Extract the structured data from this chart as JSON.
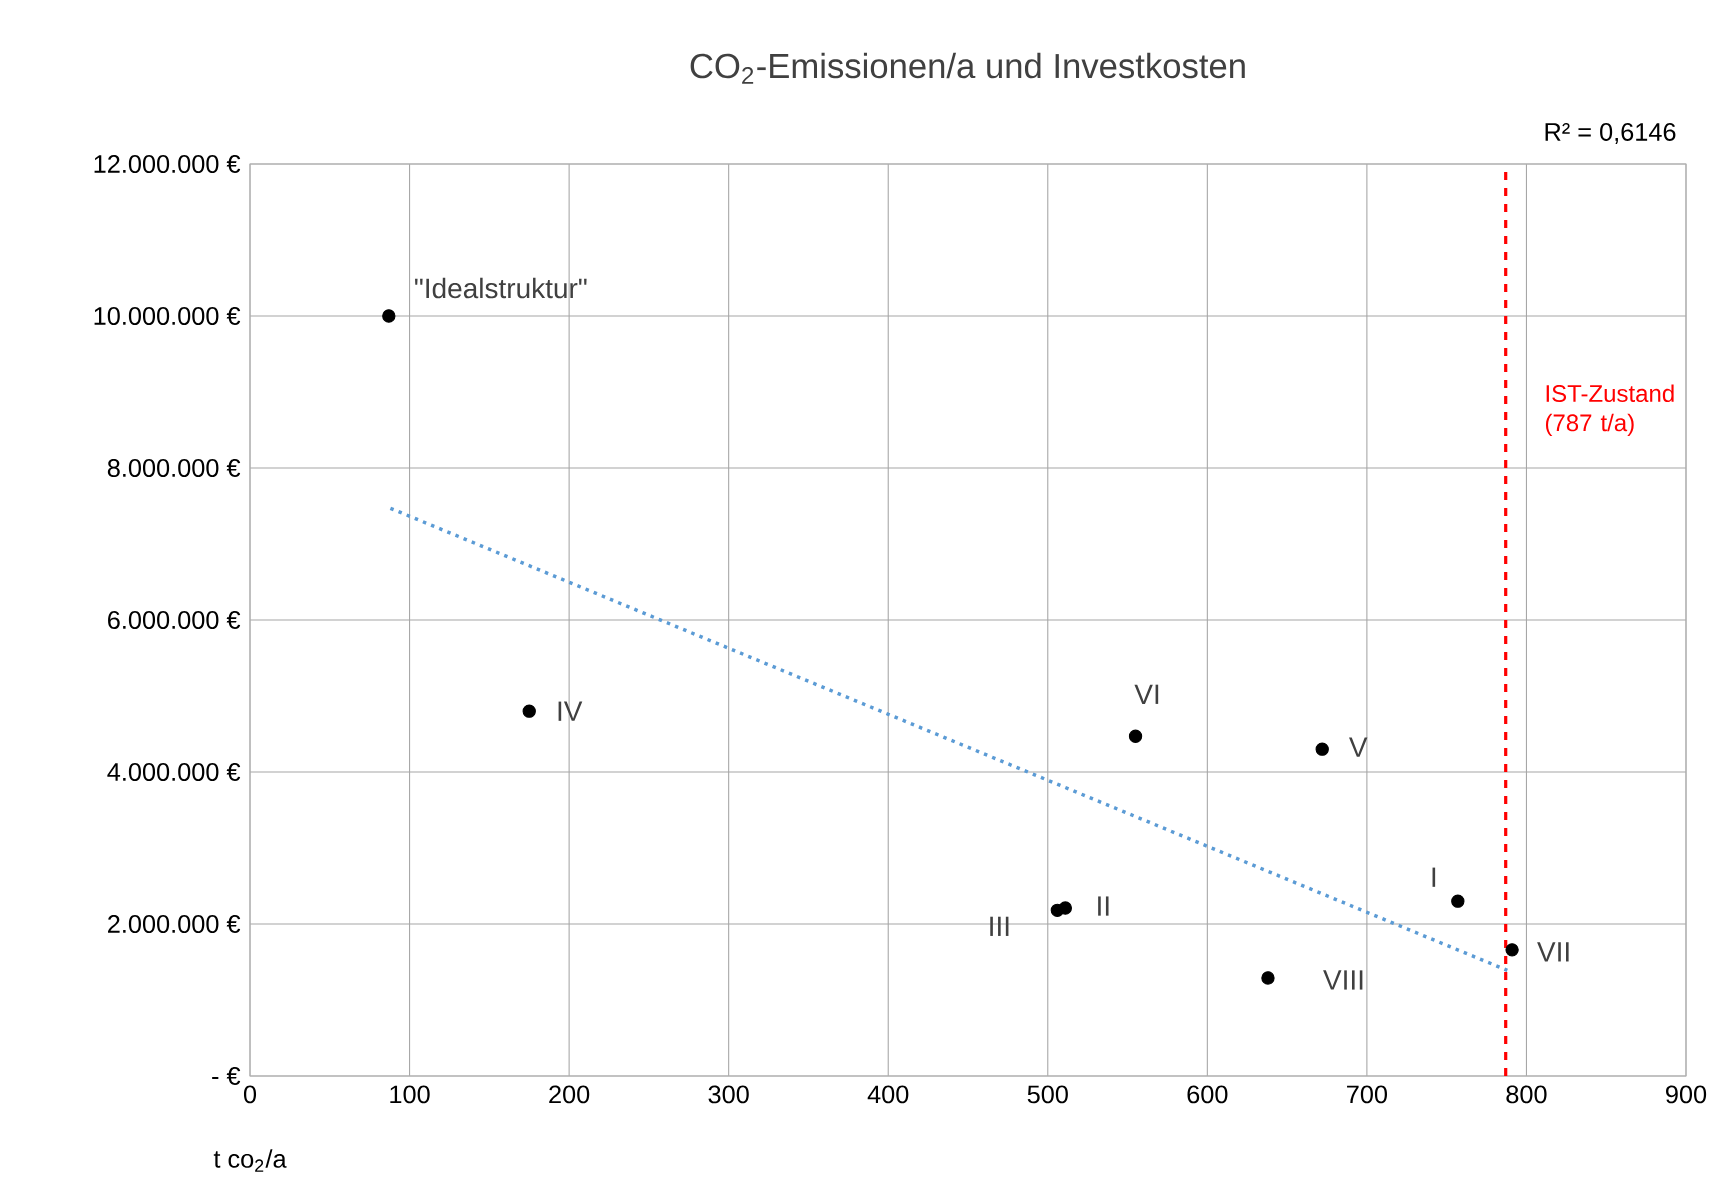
{
  "chart_data": {
    "type": "scatter",
    "title": "CO$_{2}$-Emissionen/a und Investkosten",
    "xlabel": "t co$_{2}$/a",
    "xlim": [
      0,
      900
    ],
    "ylim": [
      0,
      12000000
    ],
    "xticks": [
      0,
      100,
      200,
      300,
      400,
      500,
      600,
      700,
      800,
      900
    ],
    "yticks": [
      {
        "value": 0,
        "label": "-   €"
      },
      {
        "value": 2000000,
        "label": "2.000.000 €"
      },
      {
        "value": 4000000,
        "label": "4.000.000 €"
      },
      {
        "value": 6000000,
        "label": "6.000.000 €"
      },
      {
        "value": 8000000,
        "label": "8.000.000 €"
      },
      {
        "value": 10000000,
        "label": "10.000.000 €"
      },
      {
        "value": 12000000,
        "label": "12.000.000 €"
      }
    ],
    "grid": true,
    "series": [
      {
        "color": "#000000",
        "marker": "circle",
        "x": [
          87,
          175,
          555,
          672,
          757,
          511,
          506,
          638,
          791
        ],
        "values": [
          10000000,
          4800000,
          4470000,
          4300000,
          2300000,
          2210000,
          2180000,
          1290000,
          1660000
        ]
      },
      {
        "type": "line",
        "color": "#5b9bd5",
        "line_style": "dotted",
        "marker": "none",
        "x": [
          88,
          788
        ],
        "values": [
          7470000,
          1390000
        ]
      }
    ],
    "ref_lines": [
      {
        "axis": "x",
        "value": 787,
        "label": "IST-Zustand (787 t/a)",
        "color": "#ff0000",
        "line_style": "dashed"
      }
    ],
    "annotations": [
      {
        "text": "\"Idealstruktur\"",
        "x": 87,
        "y": 10000000
      },
      {
        "text": "IV",
        "x": 175,
        "y": 4800000
      },
      {
        "text": "VI",
        "x": 555,
        "y": 4470000
      },
      {
        "text": "V",
        "x": 672,
        "y": 4300000
      },
      {
        "text": "I",
        "x": 757,
        "y": 2300000
      },
      {
        "text": "II",
        "x": 511,
        "y": 2210000
      },
      {
        "text": "III",
        "x": 506,
        "y": 2180000
      },
      {
        "text": "VIII",
        "x": 638,
        "y": 1290000
      },
      {
        "text": "VII",
        "x": 791,
        "y": 1660000
      },
      "R² = 0,6146"
    ]
  }
}
